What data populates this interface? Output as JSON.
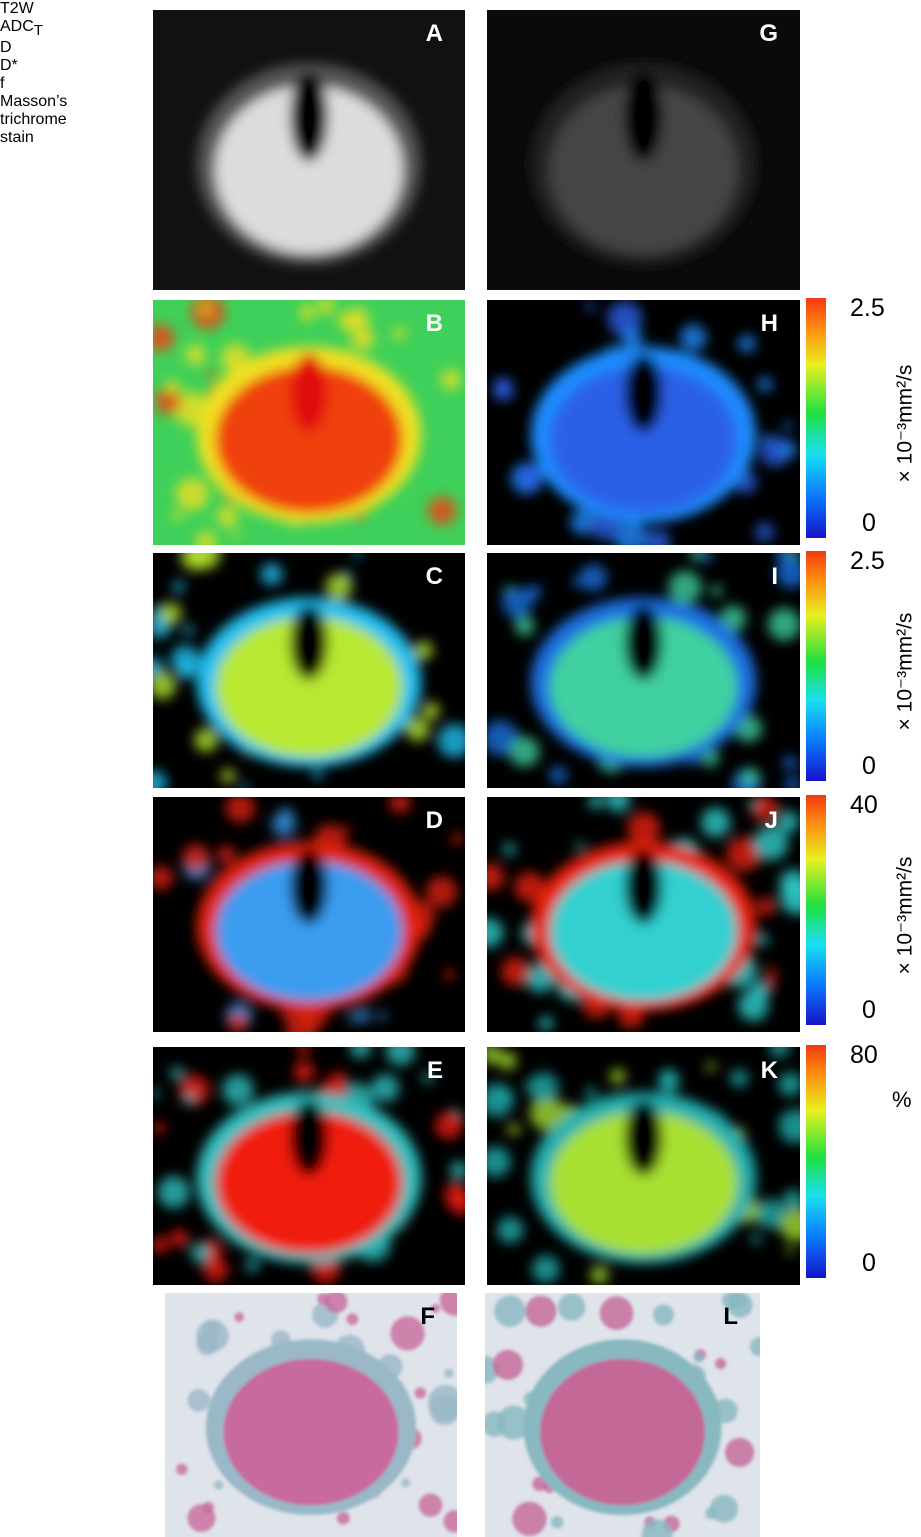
{
  "rows": [
    {
      "label": "T2W",
      "panels": [
        {
          "letter": "A"
        },
        {
          "letter": "G"
        }
      ]
    },
    {
      "label": "ADC",
      "label_subscript": "T",
      "panels": [
        {
          "letter": "B"
        },
        {
          "letter": "H"
        }
      ],
      "colorbar": {
        "max": 2.5,
        "min": 0,
        "unit": "× 10⁻³mm²/s"
      }
    },
    {
      "label": "D",
      "panels": [
        {
          "letter": "C"
        },
        {
          "letter": "I"
        }
      ],
      "colorbar": {
        "max": 2.5,
        "min": 0,
        "unit": "× 10⁻³mm²/s"
      }
    },
    {
      "label": "D*",
      "panels": [
        {
          "letter": "D"
        },
        {
          "letter": "J"
        }
      ],
      "colorbar": {
        "max": 40,
        "min": 0,
        "unit": "× 10⁻³mm²/s"
      }
    },
    {
      "label": "f",
      "panels": [
        {
          "letter": "E"
        },
        {
          "letter": "K"
        }
      ],
      "colorbar": {
        "max": 80,
        "min": 0,
        "unit": "%"
      }
    },
    {
      "label_lines": [
        "Masson’s",
        "trichrome",
        "stain"
      ],
      "panels": [
        {
          "letter": "F"
        },
        {
          "letter": "L"
        }
      ]
    }
  ]
}
